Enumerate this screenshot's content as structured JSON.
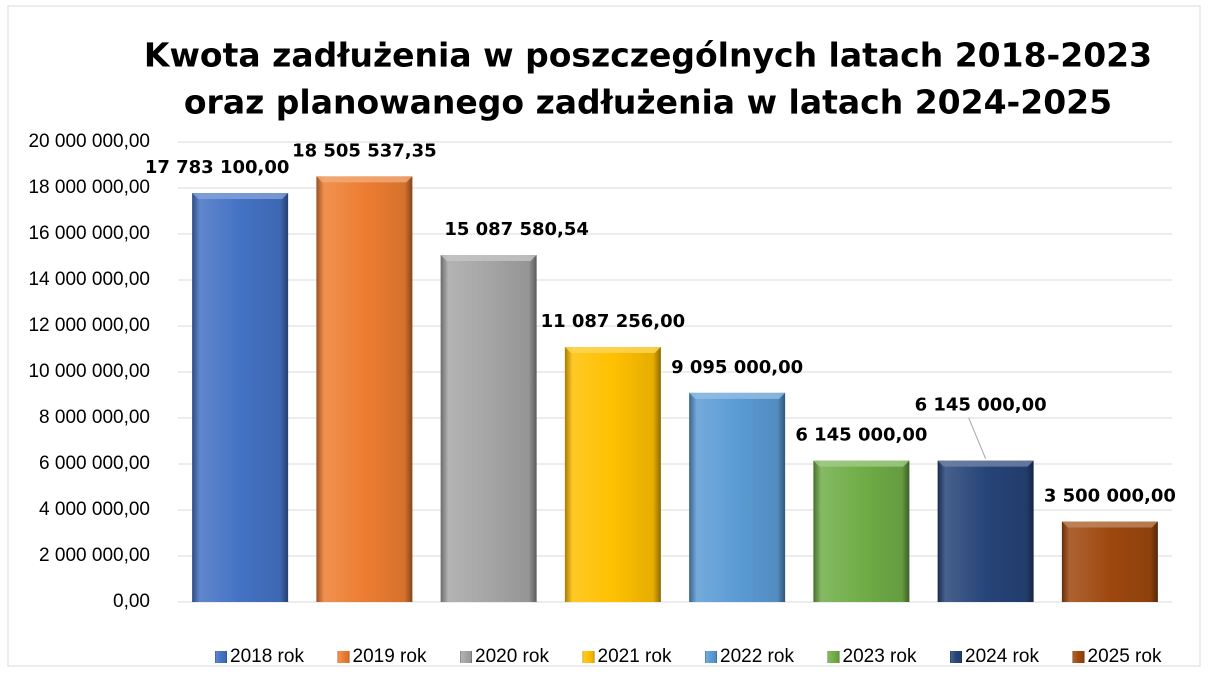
{
  "chart_data": {
    "type": "bar",
    "title": [
      "Kwota zadłużenia  w poszczególnych latach 2018-2023",
      "oraz planowanego zadłużenia w latach 2024-2025"
    ],
    "categories": [
      null
    ],
    "series": [
      {
        "name": "2018 rok",
        "color": "#4472c4",
        "values": [
          17783100
        ],
        "value_labels": [
          "17 783 100,00"
        ]
      },
      {
        "name": "2019 rok",
        "color": "#ed7d31",
        "values": [
          18505537.35
        ],
        "value_labels": [
          "18 505 537,35"
        ]
      },
      {
        "name": "2020 rok",
        "color": "#a5a5a5",
        "values": [
          15087580.54
        ],
        "value_labels": [
          "15 087 580,54"
        ]
      },
      {
        "name": "2021 rok",
        "color": "#ffc000",
        "values": [
          11087256
        ],
        "value_labels": [
          "11 087 256,00"
        ]
      },
      {
        "name": "2022 rok",
        "color": "#5b9bd5",
        "values": [
          9095000
        ],
        "value_labels": [
          "9 095 000,00"
        ]
      },
      {
        "name": "2023 rok",
        "color": "#70ad47",
        "values": [
          6145000
        ],
        "value_labels": [
          "6 145 000,00"
        ]
      },
      {
        "name": "2024 rok",
        "color": "#264478",
        "values": [
          6145000
        ],
        "value_labels": [
          "6 145 000,00"
        ]
      },
      {
        "name": "2025 rok",
        "color": "#9e480e",
        "values": [
          3500000
        ],
        "value_labels": [
          "3 500 000,00"
        ]
      }
    ],
    "ylim": [
      0,
      20000000
    ],
    "yticks": [
      {
        "value": 0,
        "label": "0,00"
      },
      {
        "value": 2000000,
        "label": "2 000 000,00"
      },
      {
        "value": 4000000,
        "label": "4 000 000,00"
      },
      {
        "value": 6000000,
        "label": "6 000 000,00"
      },
      {
        "value": 8000000,
        "label": "8 000 000,00"
      },
      {
        "value": 10000000,
        "label": "10 000 000,00"
      },
      {
        "value": 12000000,
        "label": "12 000 000,00"
      },
      {
        "value": 14000000,
        "label": "14 000 000,00"
      },
      {
        "value": 16000000,
        "label": "16 000 000,00"
      },
      {
        "value": 18000000,
        "label": "18 000 000,00"
      },
      {
        "value": 20000000,
        "label": "20 000 000,00"
      }
    ],
    "grid": true,
    "legend": "bottom"
  }
}
